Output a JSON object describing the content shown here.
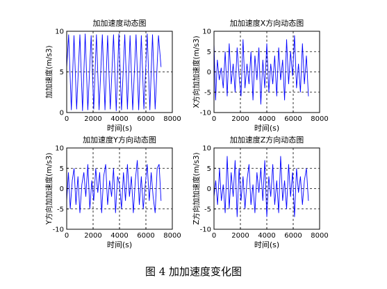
{
  "caption": "图 4 加加速度变化图",
  "chart_data": [
    {
      "type": "line",
      "title": "加加速度动态图",
      "xlabel": "时间(s)",
      "ylabel": "加加速度(m/s3)",
      "xlim": [
        0,
        8000
      ],
      "ylim": [
        0,
        10
      ],
      "xticks": [
        0,
        2000,
        4000,
        6000,
        8000
      ],
      "yticks": [
        0,
        5,
        10
      ],
      "grid": "dashed lines at y=5 and x=2000,4000,6000",
      "series_color": "#0000ff",
      "x": [
        0,
        150,
        350,
        550,
        750,
        1000,
        1200,
        1400,
        1600,
        1850,
        2050,
        2250,
        2450,
        2700,
        2900,
        3100,
        3300,
        3550,
        3750,
        3950,
        4150,
        4400,
        4600,
        4800,
        5000,
        5250,
        5450,
        5650,
        5850,
        6100,
        6300,
        6500,
        6700,
        6950,
        7150
      ],
      "y": [
        5.5,
        9.6,
        0.3,
        9.5,
        0.4,
        9.6,
        0.2,
        9.7,
        0.3,
        9.5,
        0.4,
        9.6,
        0.3,
        9.6,
        0.3,
        9.5,
        0.4,
        9.6,
        0.2,
        9.7,
        0.3,
        9.6,
        0.4,
        9.5,
        0.3,
        9.6,
        0.3,
        9.5,
        0.4,
        9.7,
        0.3,
        9.6,
        0.4,
        9.5,
        5.6
      ]
    },
    {
      "type": "line",
      "title": "加加速度X方向动态图",
      "xlabel": "时间(s)",
      "ylabel": "X方向加加速度(m/s3)",
      "xlim": [
        0,
        8000
      ],
      "ylim": [
        -10,
        10
      ],
      "xticks": [
        0,
        2000,
        4000,
        6000,
        8000
      ],
      "yticks": [
        -10,
        -5,
        0,
        5,
        10
      ],
      "grid": "dashed lines at y=-5,0,5 and x=2000,4000,6000",
      "series_color": "#0000ff",
      "x": [
        0,
        120,
        250,
        400,
        550,
        700,
        850,
        1000,
        1150,
        1300,
        1450,
        1600,
        1750,
        1900,
        2050,
        2200,
        2350,
        2500,
        2650,
        2800,
        2950,
        3100,
        3250,
        3400,
        3550,
        3700,
        3850,
        4000,
        4150,
        4300,
        4450,
        4600,
        4750,
        4900,
        5050,
        5200,
        5350,
        5500,
        5650,
        5800,
        5950,
        6100,
        6250,
        6400,
        6550,
        6700,
        6850,
        7000,
        7150
      ],
      "y": [
        7,
        -7,
        3,
        -2,
        1,
        -4,
        5,
        -6,
        7,
        -3,
        2,
        -5,
        6,
        -1,
        -6,
        8,
        -4,
        2,
        -3,
        5,
        -7,
        4,
        -2,
        6,
        -8,
        3,
        -4,
        7,
        -5,
        2,
        -3,
        4,
        -6,
        6,
        -2,
        3,
        -7,
        8,
        -3,
        5,
        -1,
        9,
        -4,
        2,
        -5,
        7,
        -3,
        4,
        -6
      ]
    },
    {
      "type": "line",
      "title": "加加速度Y方向动态图",
      "xlabel": "时间(s)",
      "ylabel": "Y方向加加速度(m/s3)",
      "xlim": [
        0,
        8000
      ],
      "ylim": [
        -10,
        10
      ],
      "xticks": [
        0,
        2000,
        4000,
        6000,
        8000
      ],
      "yticks": [
        -10,
        -5,
        0,
        5,
        10
      ],
      "grid": "dashed lines at y=-5,0,5 and x=2000,4000,6000",
      "series_color": "#0000ff",
      "x": [
        0,
        130,
        270,
        420,
        560,
        700,
        850,
        1000,
        1150,
        1300,
        1450,
        1600,
        1750,
        1900,
        2050,
        2200,
        2350,
        2500,
        2650,
        2800,
        2950,
        3100,
        3250,
        3400,
        3550,
        3700,
        3850,
        4000,
        4150,
        4300,
        4450,
        4600,
        4750,
        4900,
        5050,
        5200,
        5350,
        5500,
        5650,
        5800,
        5950,
        6100,
        6250,
        6400,
        6550,
        6700,
        6850,
        7000,
        7150
      ],
      "y": [
        -3,
        4,
        -5,
        2,
        5,
        -4,
        3,
        -6,
        1,
        4,
        -2,
        6,
        -5,
        2,
        -3,
        5,
        -1,
        4,
        -6,
        3,
        6,
        -4,
        2,
        -2,
        5,
        -6,
        3,
        1,
        -5,
        4,
        -3,
        6,
        -2,
        3,
        -6,
        2,
        7,
        -4,
        3,
        -5,
        1,
        6,
        -3,
        4,
        -2,
        -6,
        5,
        6,
        -3
      ]
    },
    {
      "type": "line",
      "title": "加加速度Z方向动态图",
      "xlabel": "时间(s)",
      "ylabel": "Z方向加加速度(m/s3)",
      "xlim": [
        0,
        8000
      ],
      "ylim": [
        -10,
        10
      ],
      "xticks": [
        0,
        2000,
        4000,
        6000,
        8000
      ],
      "yticks": [
        -10,
        -5,
        0,
        5,
        10
      ],
      "grid": "dashed lines at y=-5,0,5 and x=2000,4000,6000",
      "series_color": "#0000ff",
      "x": [
        0,
        130,
        270,
        420,
        560,
        700,
        850,
        1000,
        1150,
        1300,
        1450,
        1600,
        1750,
        1900,
        2050,
        2200,
        2350,
        2500,
        2650,
        2800,
        2950,
        3100,
        3250,
        3400,
        3550,
        3700,
        3850,
        4000,
        4150,
        4300,
        4450,
        4600,
        4750,
        4900,
        5050,
        5200,
        5350,
        5500,
        5650,
        5800,
        5950,
        6100,
        6250,
        6400,
        6550,
        6700,
        6850,
        7000,
        7150
      ],
      "y": [
        -2,
        2,
        -4,
        5,
        -3,
        1,
        -6,
        8,
        -5,
        4,
        -2,
        7,
        -7,
        5,
        -3,
        3,
        -5,
        2,
        6,
        -4,
        1,
        -6,
        4,
        -1,
        5,
        -3,
        7,
        -7,
        3,
        -2,
        6,
        -4,
        2,
        -6,
        8,
        -3,
        2,
        -5,
        6,
        -2,
        4,
        -7,
        5,
        -1,
        3,
        -4,
        2,
        5,
        -3
      ]
    }
  ]
}
